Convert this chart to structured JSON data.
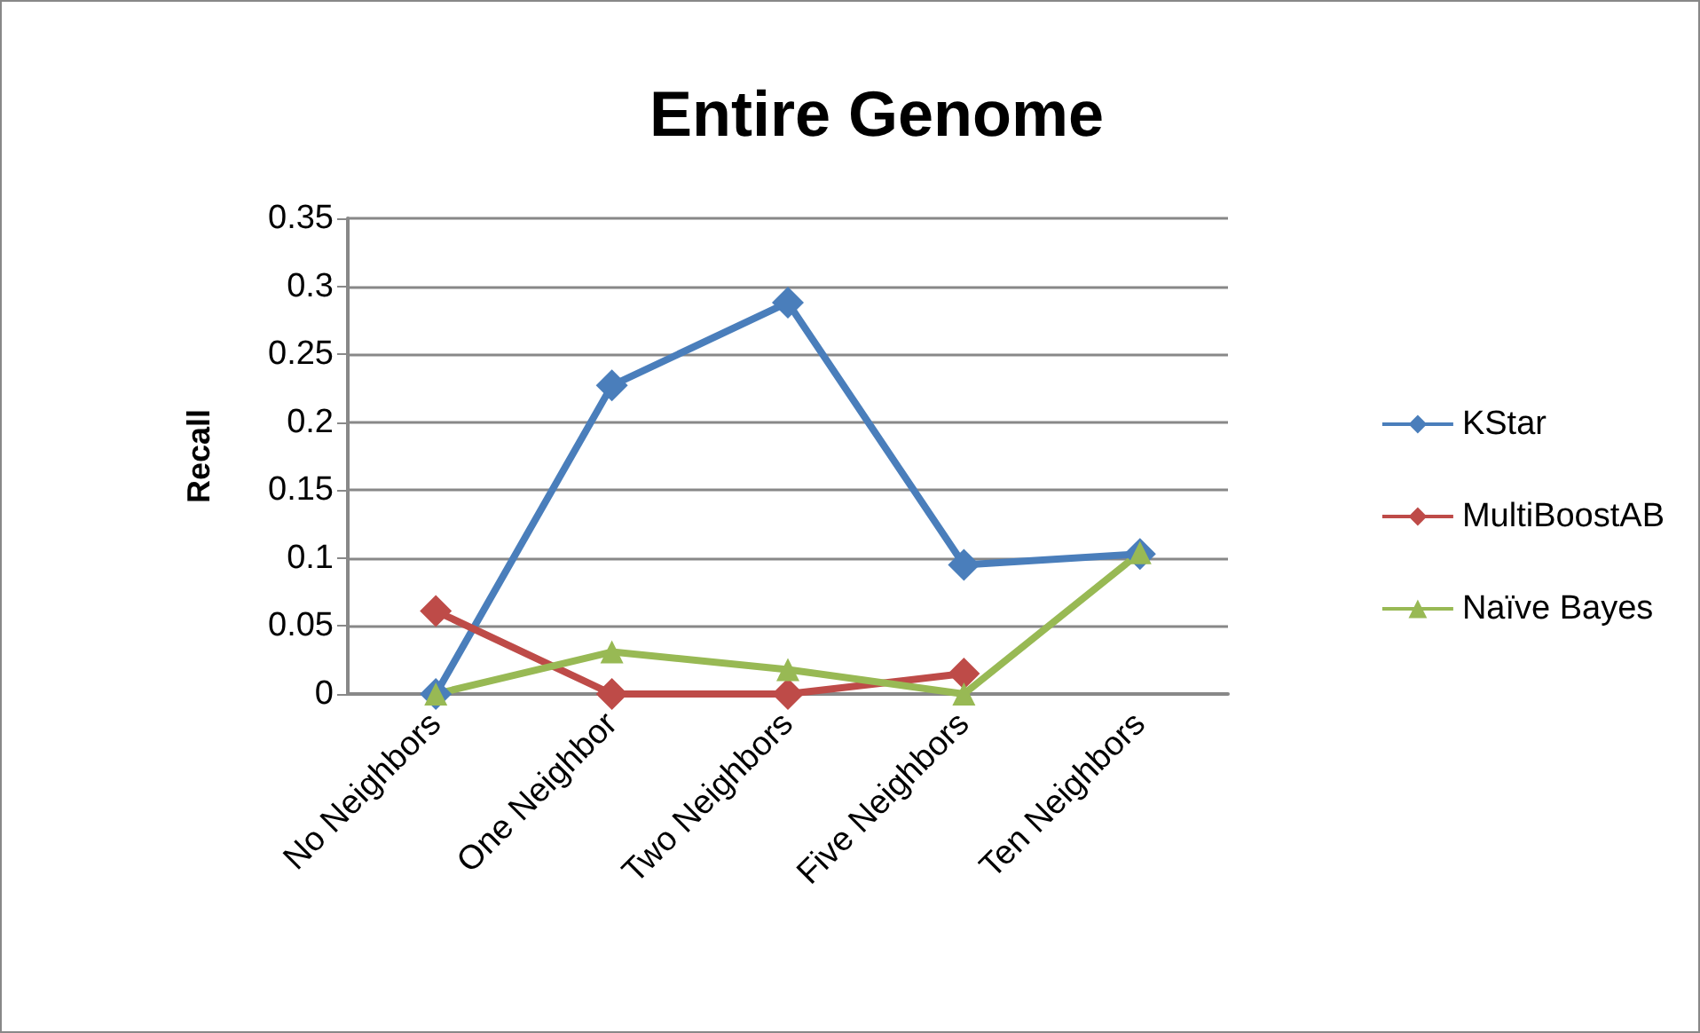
{
  "chart_data": {
    "type": "line",
    "title": "Entire Genome",
    "ylabel": "Recall",
    "categories": [
      "No Neighbors",
      "One Neighbor",
      "Two Neighbors",
      "Five Neighbors",
      "Ten Neighbors"
    ],
    "series": [
      {
        "name": "KStar",
        "color": "#4a7ebb",
        "marker": "diamond",
        "values": [
          0,
          0.227,
          0.288,
          0.095,
          0.103
        ]
      },
      {
        "name": "MultiBoostAB",
        "color": "#be4b48",
        "marker": "diamond",
        "values": [
          0.061,
          0,
          0,
          0.015,
          null
        ]
      },
      {
        "name": "Naïve Bayes",
        "color": "#98b954",
        "marker": "triangle",
        "values": [
          0,
          0.031,
          0.018,
          0,
          0.104
        ]
      }
    ],
    "ylim": [
      0,
      0.35
    ],
    "yticks": [
      0,
      0.05,
      0.1,
      0.15,
      0.2,
      0.25,
      0.3,
      0.35
    ],
    "grid": "y",
    "legend": "right",
    "line_style": "solid"
  }
}
